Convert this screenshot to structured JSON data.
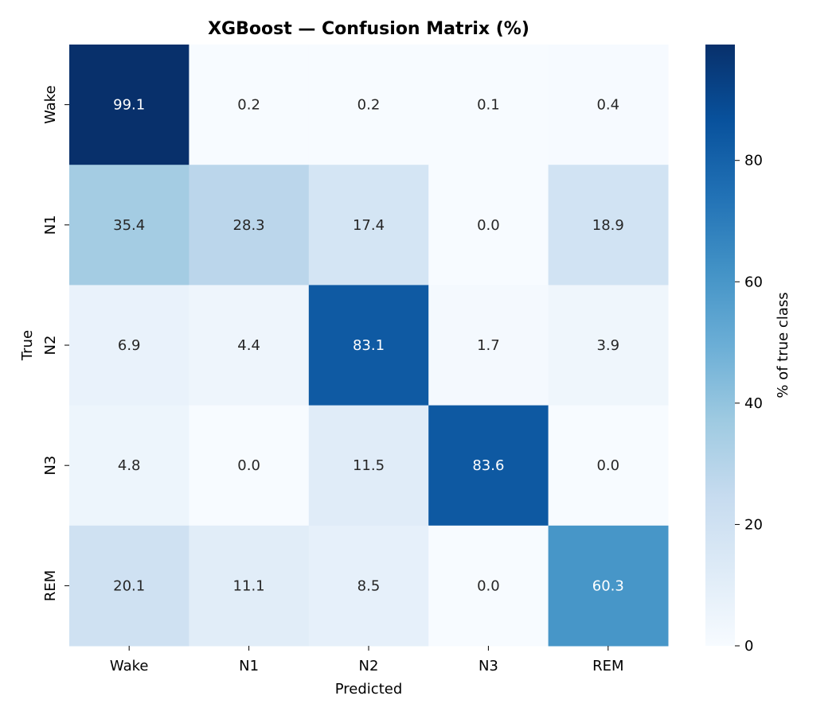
{
  "chart_data": {
    "type": "heatmap",
    "title": "XGBoost — Confusion Matrix (%)",
    "xlabel": "Predicted",
    "ylabel": "True",
    "x_categories": [
      "Wake",
      "N1",
      "N2",
      "N3",
      "REM"
    ],
    "y_categories": [
      "Wake",
      "N1",
      "N2",
      "N3",
      "REM"
    ],
    "values": [
      [
        99.1,
        0.2,
        0.2,
        0.1,
        0.4
      ],
      [
        35.4,
        28.3,
        17.4,
        0.0,
        18.9
      ],
      [
        6.9,
        4.4,
        83.1,
        1.7,
        3.9
      ],
      [
        4.8,
        0.0,
        11.5,
        83.6,
        0.0
      ],
      [
        20.1,
        11.1,
        8.5,
        0.0,
        60.3
      ]
    ],
    "colormap": "Blues",
    "color_range": [
      0,
      99.1
    ],
    "colorbar": {
      "label": "% of true class",
      "ticks": [
        0,
        20,
        40,
        60,
        80
      ]
    },
    "annotations": "values with one decimal",
    "grid": false
  }
}
